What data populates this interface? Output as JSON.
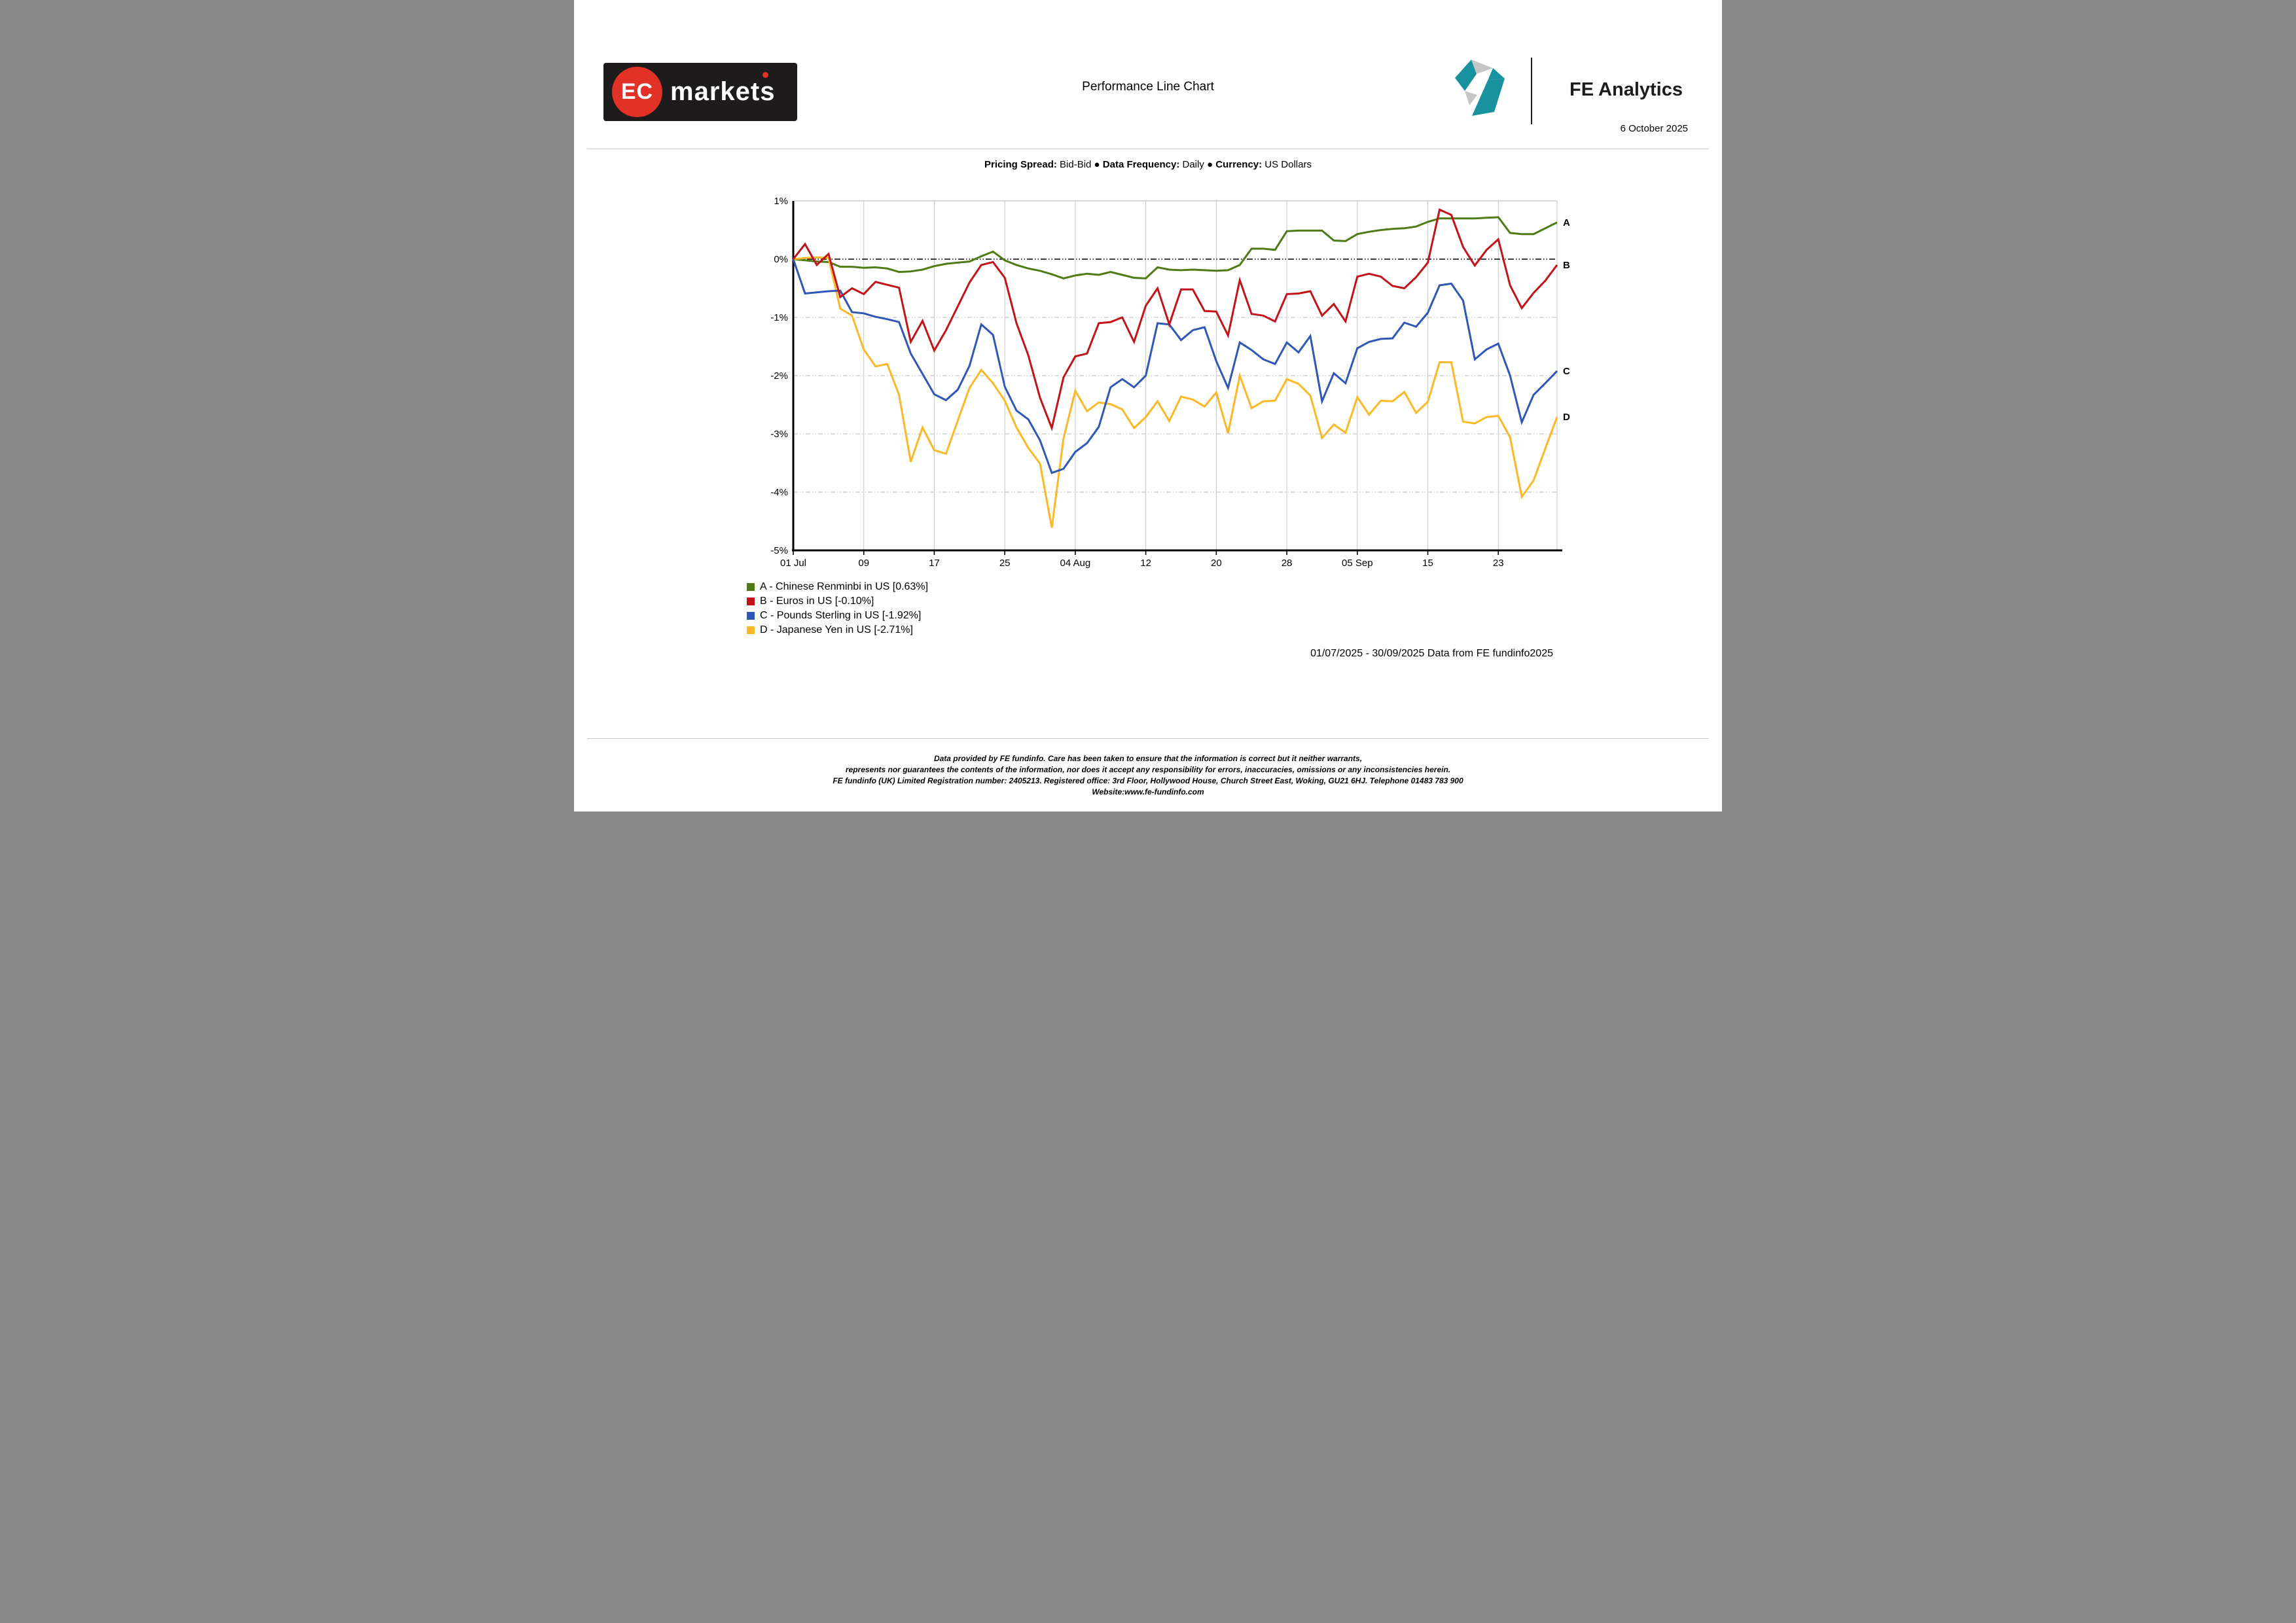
{
  "page": {
    "brand_logo": {
      "badge": "EC",
      "word": "markets"
    },
    "title": "Performance Line Chart",
    "fe_logo_text": "FE Analytics",
    "report_date": "6 October 2025",
    "subtitle_parts": [
      {
        "label": "Pricing Spread:",
        "value": "Bid-Bid"
      },
      {
        "label": "Data Frequency:",
        "value": "Daily"
      },
      {
        "label": "Currency:",
        "value": "US Dollars"
      }
    ],
    "subtitle_separator": "●",
    "date_range": "01/07/2025 - 30/09/2025 Data from FE fundinfo2025",
    "footer_lines": [
      "Data provided by FE fundinfo. Care has been taken to ensure that the information is correct but it neither warrants,",
      "represents nor guarantees the contents of the information, nor does it accept any responsibility for errors, inaccuracies, omissions or any inconsistencies herein.",
      "FE fundinfo (UK) Limited Registration number: 2405213. Registered office: 3rd Floor, Hollywood House, Church Street East, Woking, GU21 6HJ. Telephone 01483 783 900",
      "Website:www.fe-fundinfo.com"
    ]
  },
  "colors": {
    "accent_red": "#e23127",
    "logo_black": "#1d1b1c",
    "fe_teal": "#17929e",
    "fe_gray": "#c6c6c6",
    "grid_gray": "#c6c6c6",
    "plot_border_gray": "#b5b5b5",
    "axis_black": "#000000"
  },
  "chart_data": {
    "type": "line",
    "title": "Performance Line Chart",
    "xlabel": "",
    "ylabel": "",
    "ylim": [
      -5,
      1
    ],
    "grid": true,
    "legend_position": "bottom-left",
    "x_axis": {
      "total_days": 65,
      "tick_days": [
        0,
        6,
        12,
        18,
        24,
        30,
        36,
        42,
        48,
        54,
        60
      ],
      "tick_labels": [
        "01 Jul",
        "09",
        "17",
        "25",
        "04 Aug",
        "12",
        "20",
        "28",
        "05 Sep",
        "15",
        "23"
      ]
    },
    "y_axis": {
      "tick_values": [
        1,
        0,
        -1,
        -2,
        -3,
        -4,
        -5
      ],
      "tick_labels": [
        "1%",
        "0%",
        "-1%",
        "-2%",
        "-3%",
        "-4%",
        "-5%"
      ]
    },
    "series": [
      {
        "id": "A",
        "name": "Chinese Renminbi in US",
        "final_value": "0.63%",
        "legend": "A - Chinese Renminbi in US [0.63%]",
        "color": "#4d7c15",
        "values": [
          0.0,
          -0.02,
          -0.04,
          -0.05,
          -0.13,
          -0.13,
          -0.15,
          -0.14,
          -0.16,
          -0.22,
          -0.21,
          -0.18,
          -0.12,
          -0.08,
          -0.06,
          -0.04,
          0.05,
          0.13,
          -0.02,
          -0.1,
          -0.16,
          -0.2,
          -0.26,
          -0.33,
          -0.28,
          -0.25,
          -0.27,
          -0.22,
          -0.27,
          -0.32,
          -0.33,
          -0.14,
          -0.18,
          -0.19,
          -0.18,
          -0.19,
          -0.2,
          -0.19,
          -0.1,
          0.18,
          0.18,
          0.16,
          0.48,
          0.49,
          0.49,
          0.49,
          0.32,
          0.31,
          0.43,
          0.47,
          0.5,
          0.52,
          0.53,
          0.56,
          0.64,
          0.7,
          0.7,
          0.7,
          0.7,
          0.71,
          0.72,
          0.45,
          0.43,
          0.43,
          0.53,
          0.63
        ]
      },
      {
        "id": "B",
        "name": "Euros in US",
        "final_value": "-0.10%",
        "legend": "B - Euros in US [-0.10%]",
        "color": "#c31318",
        "values": [
          0.0,
          0.26,
          -0.1,
          0.09,
          -0.65,
          -0.5,
          -0.6,
          -0.39,
          -0.44,
          -0.49,
          -1.42,
          -1.06,
          -1.57,
          -1.22,
          -0.81,
          -0.4,
          -0.1,
          -0.05,
          -0.32,
          -1.1,
          -1.65,
          -2.38,
          -2.9,
          -2.03,
          -1.67,
          -1.62,
          -1.1,
          -1.08,
          -1.0,
          -1.42,
          -0.8,
          -0.5,
          -1.12,
          -0.52,
          -0.52,
          -0.89,
          -0.9,
          -1.31,
          -0.36,
          -0.94,
          -0.97,
          -1.07,
          -0.6,
          -0.59,
          -0.55,
          -0.97,
          -0.77,
          -1.07,
          -0.3,
          -0.25,
          -0.3,
          -0.46,
          -0.5,
          -0.31,
          -0.06,
          0.85,
          0.76,
          0.21,
          -0.11,
          0.16,
          0.34,
          -0.45,
          -0.84,
          -0.58,
          -0.37,
          -0.1
        ]
      },
      {
        "id": "C",
        "name": "Pounds Sterling in US",
        "final_value": "-1.92%",
        "legend": "C - Pounds Sterling in US [-1.92%]",
        "color": "#2e57b8",
        "values": [
          0.0,
          -0.59,
          -0.57,
          -0.55,
          -0.54,
          -0.91,
          -0.93,
          -0.99,
          -1.03,
          -1.08,
          -1.62,
          -1.97,
          -2.32,
          -2.42,
          -2.24,
          -1.83,
          -1.12,
          -1.3,
          -2.19,
          -2.6,
          -2.75,
          -3.11,
          -3.67,
          -3.6,
          -3.31,
          -3.16,
          -2.88,
          -2.2,
          -2.06,
          -2.2,
          -2.0,
          -1.1,
          -1.12,
          -1.39,
          -1.22,
          -1.17,
          -1.75,
          -2.21,
          -1.43,
          -1.56,
          -1.72,
          -1.8,
          -1.43,
          -1.6,
          -1.32,
          -2.44,
          -1.96,
          -2.13,
          -1.53,
          -1.42,
          -1.37,
          -1.36,
          -1.09,
          -1.16,
          -0.92,
          -0.45,
          -0.42,
          -0.71,
          -1.72,
          -1.55,
          -1.45,
          -2.0,
          -2.8,
          -2.33,
          -2.13,
          -1.92
        ]
      },
      {
        "id": "D",
        "name": "Japanese Yen in US",
        "final_value": "-2.71%",
        "legend": "D - Japanese Yen in US [-2.71%]",
        "color": "#fcb826",
        "values": [
          0.0,
          0.02,
          0.03,
          0.02,
          -0.85,
          -0.97,
          -1.55,
          -1.84,
          -1.8,
          -2.33,
          -3.48,
          -2.89,
          -3.28,
          -3.34,
          -2.77,
          -2.21,
          -1.9,
          -2.13,
          -2.43,
          -2.89,
          -3.24,
          -3.51,
          -4.61,
          -3.08,
          -2.26,
          -2.61,
          -2.46,
          -2.49,
          -2.58,
          -2.9,
          -2.71,
          -2.44,
          -2.78,
          -2.36,
          -2.41,
          -2.53,
          -2.29,
          -2.99,
          -2.0,
          -2.56,
          -2.44,
          -2.43,
          -2.06,
          -2.14,
          -2.34,
          -3.07,
          -2.84,
          -2.98,
          -2.37,
          -2.67,
          -2.43,
          -2.44,
          -2.28,
          -2.64,
          -2.45,
          -1.77,
          -1.77,
          -2.79,
          -2.82,
          -2.71,
          -2.69,
          -3.06,
          -4.08,
          -3.8,
          -3.25,
          -2.71
        ]
      }
    ]
  }
}
